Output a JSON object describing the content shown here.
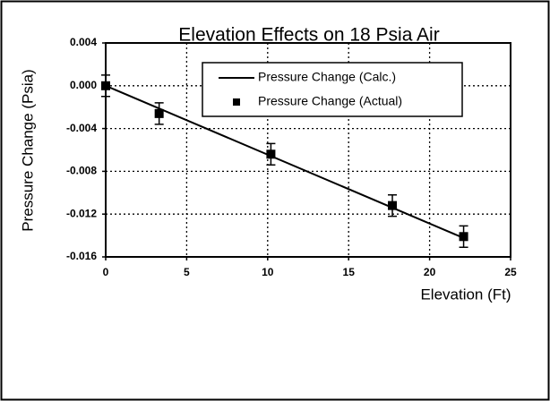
{
  "chart_data": {
    "type": "scatter",
    "title": "Elevation Effects on 18 Psia Air",
    "xlabel": "Elevation (Ft)",
    "ylabel": "Pressure Change (Psia)",
    "xlim": [
      0,
      25
    ],
    "xticks": [
      0,
      5,
      10,
      15,
      20,
      25
    ],
    "ylim": [
      -0.016,
      0.004
    ],
    "yticks": [
      {
        "value": 0.004,
        "label": "0.004"
      },
      {
        "value": 0,
        "label": "0.000"
      },
      {
        "value": -0.004,
        "label": "-0.004"
      },
      {
        "value": -0.008,
        "label": "-0.008"
      },
      {
        "value": -0.012,
        "label": "-0.012"
      },
      {
        "value": -0.016,
        "label": "-0.016"
      }
    ],
    "grid": true,
    "legend": "upper right",
    "series": [
      {
        "name": "Pressure Change (Calc.)",
        "kind": "line",
        "color": "#000000",
        "x": [
          0,
          22.2
        ],
        "values": [
          0,
          -0.0143
        ]
      },
      {
        "name": "Pressure Change (Actual)",
        "kind": "points",
        "color": "#000000",
        "x": [
          0,
          3.3,
          10.2,
          17.7,
          22.1
        ],
        "values": [
          0,
          -0.0026,
          -0.0064,
          -0.0112,
          -0.0141
        ],
        "errors": [
          0.001,
          0.001,
          0.001,
          0.001,
          0.001
        ]
      }
    ]
  }
}
